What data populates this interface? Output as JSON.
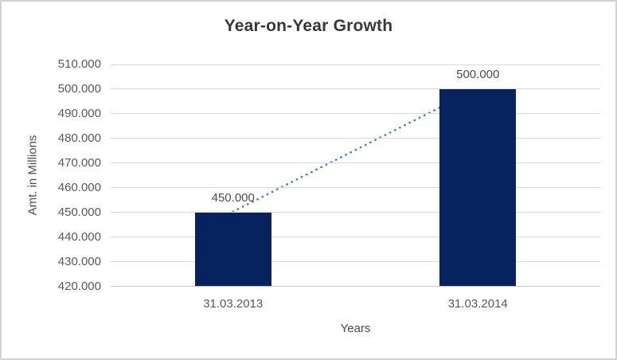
{
  "frame": {
    "background": "#ffffff",
    "border_color": "#d2d2d2"
  },
  "chart_data": {
    "type": "bar",
    "title": "Year-on-Year Growth",
    "categories": [
      "31.03.2013",
      "31.03.2014"
    ],
    "values": [
      450000,
      500000
    ],
    "data_labels": [
      "450.000",
      "500.000"
    ],
    "xlabel": "Years",
    "ylabel": "Amt. in Millions",
    "ylim": [
      420000,
      510000
    ],
    "ytick_step": 10000,
    "ytick_labels": [
      "420.000",
      "430.000",
      "440.000",
      "450.000",
      "460.000",
      "470.000",
      "480.000",
      "490.000",
      "500.000",
      "510.000"
    ],
    "grid": true,
    "legend": "none",
    "trendline": {
      "style": "dotted",
      "from": [
        0,
        450000
      ],
      "to": [
        1,
        500000
      ]
    },
    "colors": {
      "bar": "#062360",
      "trendline": "#4a7ec7",
      "gridline": "#d9d9d9",
      "axis_line": "#c6c6c6",
      "title_text": "#383838",
      "tick_text": "#595959",
      "axis_title_text": "#4d4d4d",
      "data_label_text": "#4d4d4d"
    }
  }
}
